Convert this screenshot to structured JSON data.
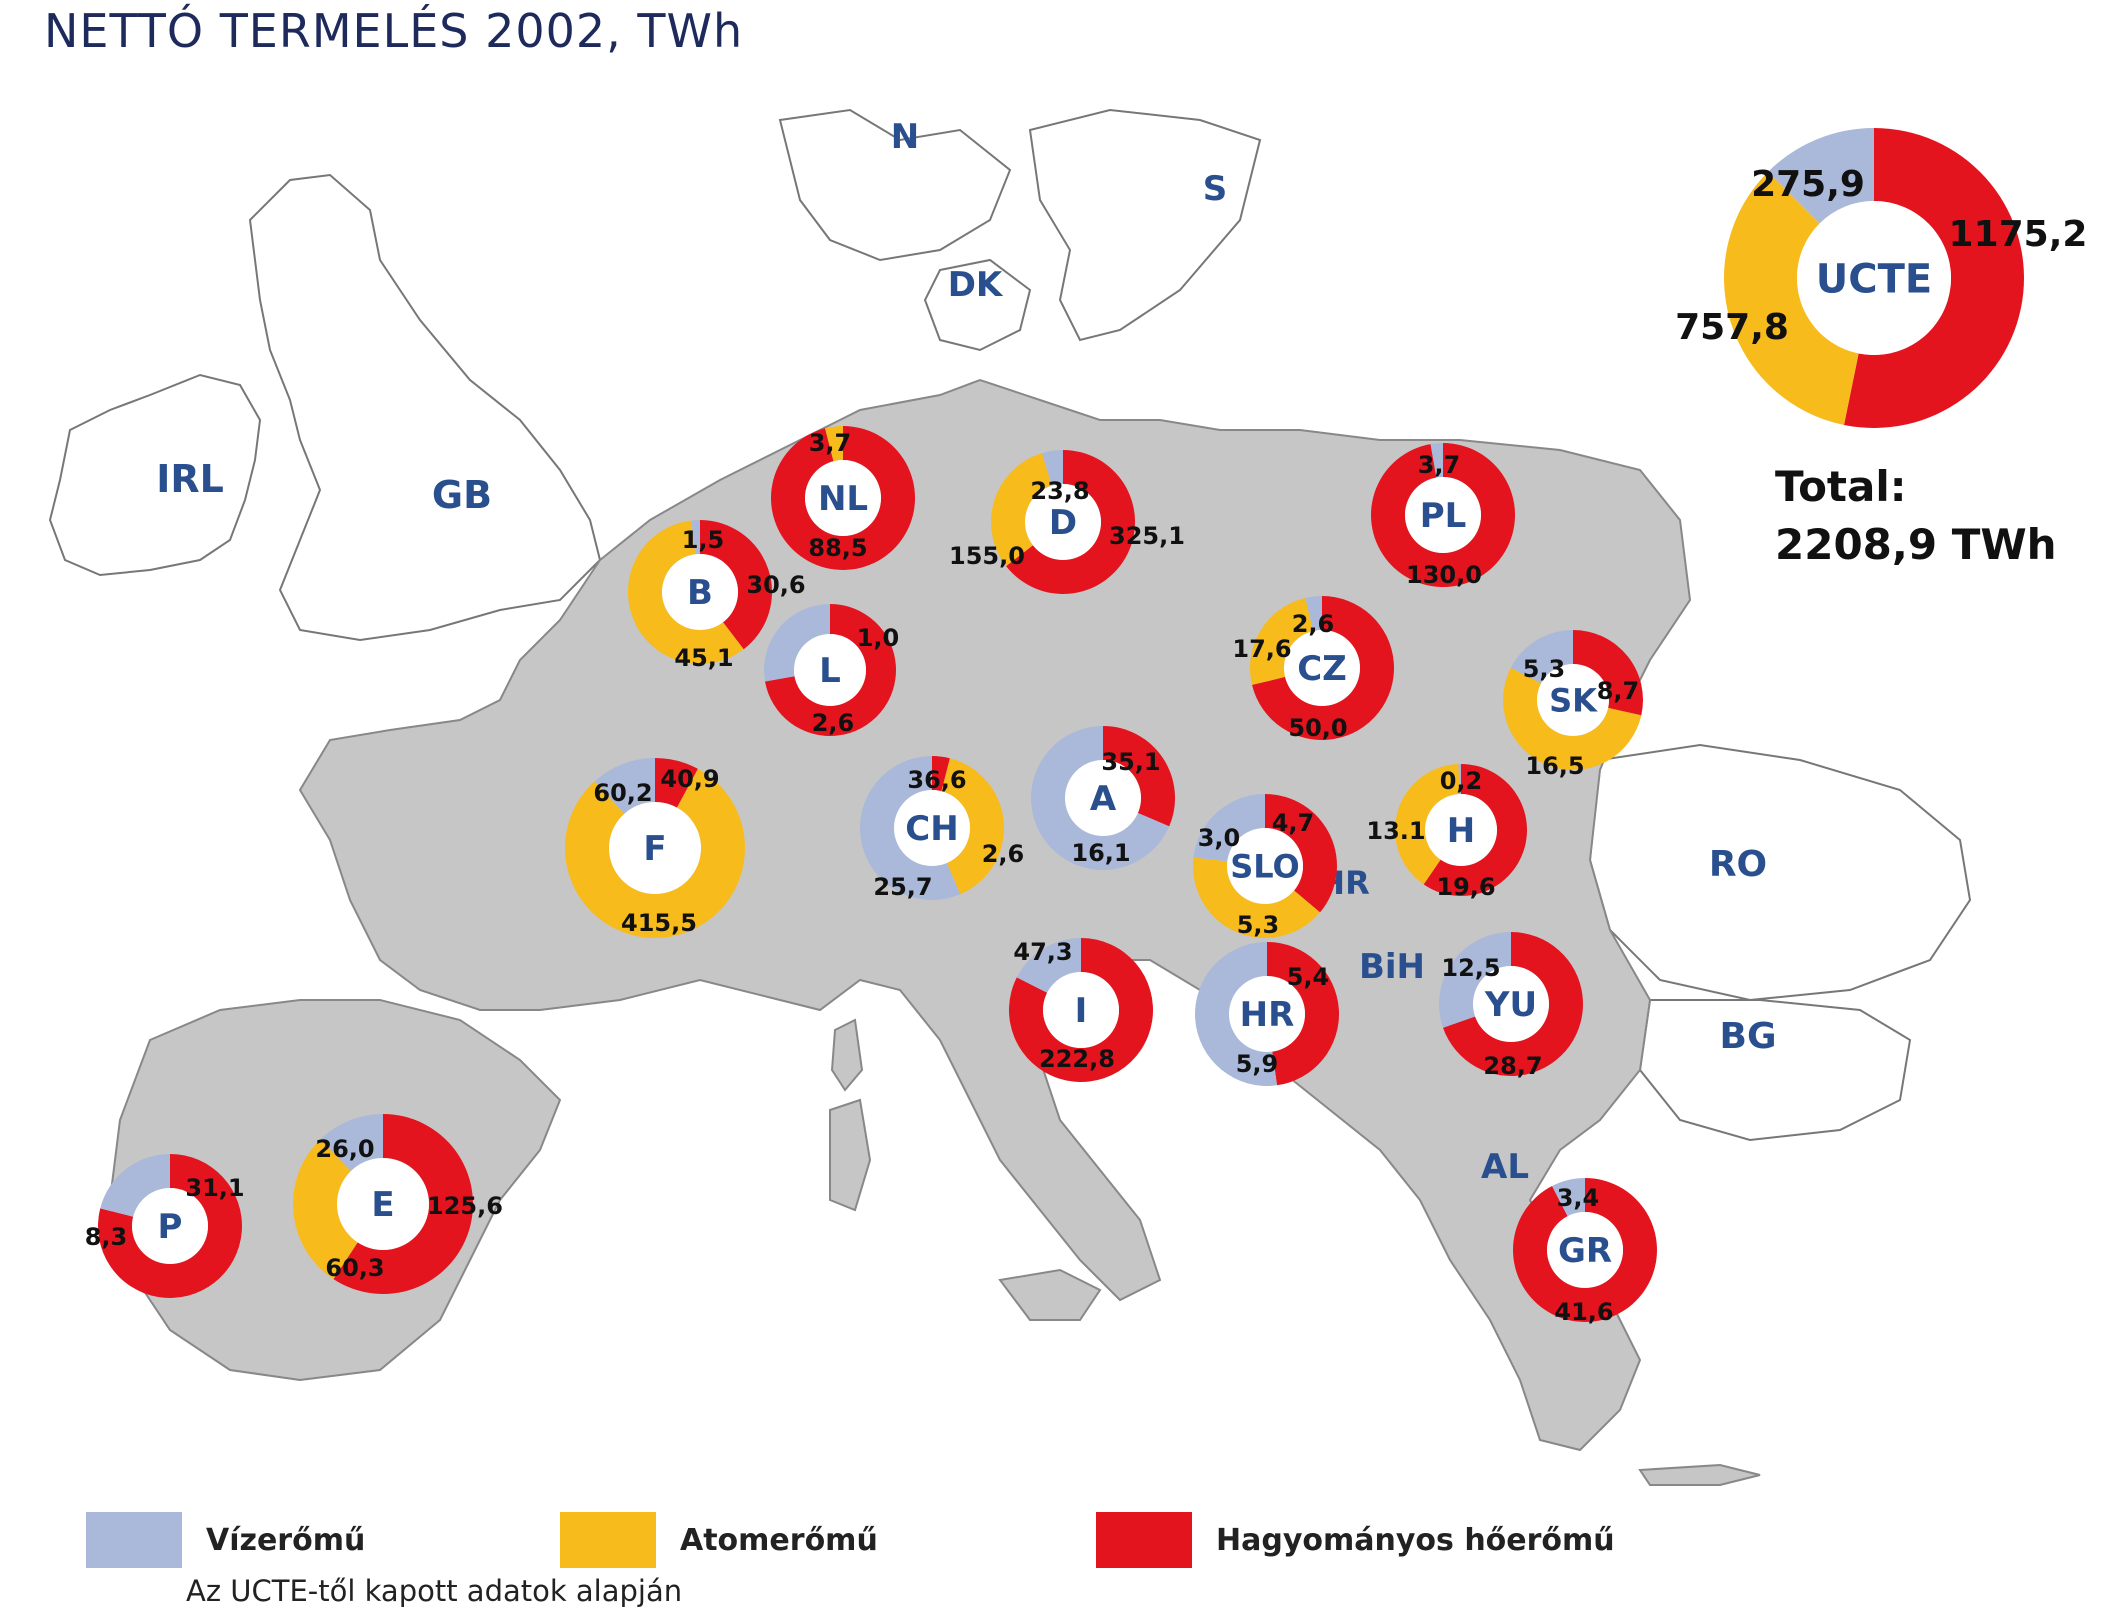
{
  "title": "NETTÓ TERMELÉS 2002, TWh",
  "colors": {
    "hydro": "#aab9d9",
    "nuclear": "#f8bb1c",
    "thermal": "#e4141e",
    "land_ucte": "#c6c6c6",
    "land_other": "#ffffff",
    "outline": "#888888"
  },
  "country_labels": [
    {
      "code": "N"
    },
    {
      "code": "S"
    },
    {
      "code": "DK"
    },
    {
      "code": "IRL"
    },
    {
      "code": "GB"
    },
    {
      "code": "RO"
    },
    {
      "code": "BG"
    },
    {
      "code": "AL"
    },
    {
      "code": "BiH"
    },
    {
      "code": "HR"
    }
  ],
  "charts": [
    {
      "code": "UCTE",
      "hydro": 275.9,
      "nuclear": 757.8,
      "thermal": 1175.2,
      "labels": [
        "275,9",
        "757,8",
        "1175,2"
      ]
    },
    {
      "code": "NL",
      "hydro": 0,
      "nuclear": 3.7,
      "thermal": 88.5,
      "labels": [
        "3,7",
        "88,5"
      ]
    },
    {
      "code": "D",
      "hydro": 23.8,
      "nuclear": 155.0,
      "thermal": 325.1,
      "labels": [
        "23,8",
        "155,0",
        "325,1"
      ]
    },
    {
      "code": "PL",
      "hydro": 3.7,
      "nuclear": 0,
      "thermal": 130.0,
      "labels": [
        "3,7",
        "130,0"
      ]
    },
    {
      "code": "B",
      "hydro": 1.5,
      "nuclear": 45.1,
      "thermal": 30.6,
      "labels": [
        "1,5",
        "45,1",
        "30,6"
      ]
    },
    {
      "code": "L",
      "hydro": 1.0,
      "nuclear": 0,
      "thermal": 2.6,
      "labels": [
        "1,0",
        "2,6"
      ]
    },
    {
      "code": "CZ",
      "hydro": 2.6,
      "nuclear": 17.6,
      "thermal": 50.0,
      "labels": [
        "2,6",
        "17,6",
        "50,0"
      ]
    },
    {
      "code": "SK",
      "hydro": 5.3,
      "nuclear": 16.5,
      "thermal": 8.7,
      "labels": [
        "5,3",
        "16,5",
        "8,7"
      ]
    },
    {
      "code": "F",
      "hydro": 60.2,
      "nuclear": 415.5,
      "thermal": 40.9,
      "labels": [
        "60,2",
        "415,5",
        "40,9"
      ]
    },
    {
      "code": "CH",
      "hydro": 36.6,
      "nuclear": 25.7,
      "thermal": 2.6,
      "labels": [
        "36,6",
        "25,7",
        "2,6"
      ]
    },
    {
      "code": "A",
      "hydro": 35.1,
      "nuclear": 0,
      "thermal": 16.1,
      "labels": [
        "35,1",
        "16,1"
      ]
    },
    {
      "code": "SLO",
      "hydro": 3.0,
      "nuclear": 5.3,
      "thermal": 4.7,
      "labels": [
        "3,0",
        "5,3",
        "4,7"
      ]
    },
    {
      "code": "H",
      "hydro": 0.2,
      "nuclear": 13.1,
      "thermal": 19.6,
      "labels": [
        "0,2",
        "13.1",
        "19,6"
      ]
    },
    {
      "code": "I",
      "hydro": 47.3,
      "nuclear": 0,
      "thermal": 222.8,
      "labels": [
        "47,3",
        "222,8"
      ]
    },
    {
      "code": "HR",
      "hydro": 5.9,
      "nuclear": 0,
      "thermal": 5.4,
      "labels": [
        "5,9",
        "5,4"
      ]
    },
    {
      "code": "YU",
      "hydro": 12.5,
      "nuclear": 0,
      "thermal": 28.7,
      "labels": [
        "12,5",
        "28,7"
      ]
    },
    {
      "code": "P",
      "hydro": 8.3,
      "nuclear": 0,
      "thermal": 31.1,
      "labels": [
        "8,3",
        "31,1"
      ]
    },
    {
      "code": "E",
      "hydro": 26.0,
      "nuclear": 60.3,
      "thermal": 125.6,
      "labels": [
        "26,0",
        "60,3",
        "125,6"
      ]
    },
    {
      "code": "GR",
      "hydro": 3.4,
      "nuclear": 0,
      "thermal": 41.6,
      "labels": [
        "3,4",
        "41,6"
      ]
    }
  ],
  "total": {
    "line1": "Total:",
    "line2": "2208,9 TWh"
  },
  "legend": [
    {
      "key": "hydro",
      "label": "Vízerőmű"
    },
    {
      "key": "nuclear",
      "label": "Atomerőmű"
    },
    {
      "key": "thermal",
      "label": "Hagyományos hőerőmű"
    }
  ],
  "source": "Az UCTE-től kapott adatok alapján"
}
